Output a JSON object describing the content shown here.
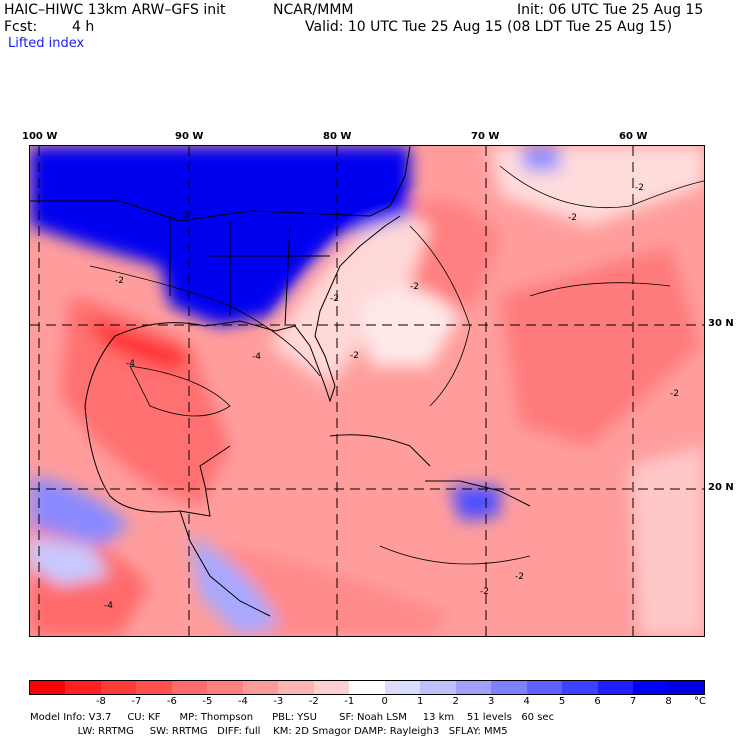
{
  "header": {
    "model": "HAIC–HIWC 13km ARW–GFS init",
    "center": "NCAR/MMM",
    "init": "Init: 06 UTC Tue 25 Aug 15",
    "fcst_label": "Fcst:",
    "fcst_value": "4 h",
    "valid": "Valid: 10 UTC Tue 25 Aug 15 (08 LDT Tue 25 Aug 15)",
    "field": "Lifted index"
  },
  "map": {
    "lon_labels": [
      "100 W",
      "90 W",
      "80 W",
      "70 W",
      "60 W"
    ],
    "lat_labels": [
      "30 N",
      "20 N"
    ],
    "contour_labels": [
      "-2",
      "-2",
      "-2",
      "-2",
      "-2",
      "-2",
      "-2",
      "-4",
      "-4",
      "-2",
      "-4",
      "-2",
      "-2"
    ]
  },
  "colorbar": {
    "ticks": [
      "-8",
      "-7",
      "-6",
      "-5",
      "-4",
      "-3",
      "-2",
      "-1",
      "0",
      "1",
      "2",
      "3",
      "4",
      "5",
      "6",
      "7",
      "8"
    ],
    "unit": "°C",
    "colors": [
      "#ff0000",
      "#ff2020",
      "#ff3a3a",
      "#ff5050",
      "#ff6a6a",
      "#ff8080",
      "#ff9a9a",
      "#ffb4b4",
      "#ffd0d0",
      "#ffffff",
      "#dcdcff",
      "#c0c0ff",
      "#a0a0ff",
      "#8080ff",
      "#6060ff",
      "#4040ff",
      "#2020ff",
      "#0000ff",
      "#0000e0"
    ]
  },
  "info": {
    "line1": "Model Info: V3.7     CU: KF      MP: Thompson      PBL: YSU       SF: Noah LSM     13 km    51 levels   60 sec",
    "line2": "               LW: RRTMG     SW: RRTMG   DIFF: full    KM: 2D Smagor DAMP: Rayleigh3   SFLAY: MM5"
  }
}
